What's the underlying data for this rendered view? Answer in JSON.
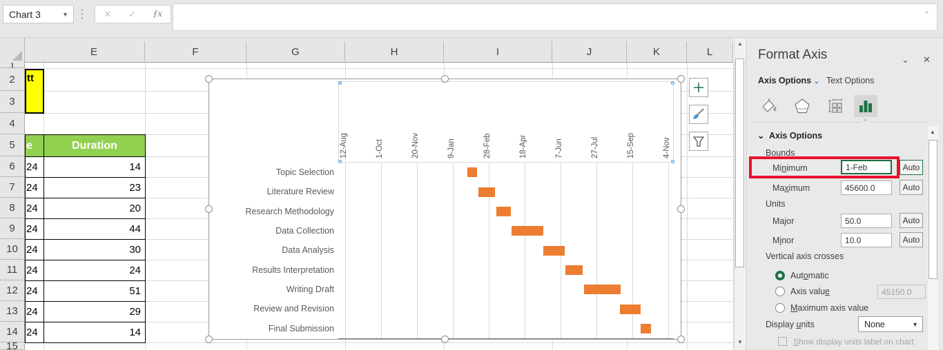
{
  "titlebar": {
    "name_box": "Chart 3",
    "cancel_icon": "✕",
    "enter_icon": "✓",
    "fx_icon": "ƒx",
    "collapse_icon": "⌃"
  },
  "sheet": {
    "columns": [
      "E",
      "F",
      "G",
      "H",
      "I",
      "J",
      "K",
      "L"
    ],
    "rows": [
      "1",
      "2",
      "3",
      "4",
      "5",
      "6",
      "7",
      "8",
      "9",
      "10",
      "11",
      "12",
      "13",
      "14",
      "15"
    ],
    "cells": {
      "title_fragment": "tt",
      "date_header_fragment": "e",
      "duration_header": "Duration",
      "d_column_values": [
        "24",
        "24",
        "24",
        "24",
        "24",
        "24",
        "24",
        "24",
        "24"
      ],
      "duration_values": [
        "14",
        "23",
        "20",
        "44",
        "30",
        "24",
        "51",
        "29",
        "14"
      ]
    },
    "colors": {
      "highlight_yellow": "#FFFF00",
      "header_green": "#92D050"
    }
  },
  "chart_data": {
    "type": "bar",
    "subtype": "horizontal-gantt",
    "categories": [
      "Topic Selection",
      "Literature Review",
      "Research Methodology",
      "Data Collection",
      "Data Analysis",
      "Results Interpretation",
      "Writing Draft",
      "Review and Revision",
      "Final Submission"
    ],
    "x_tick_labels": [
      "12-Aug",
      "1-Oct",
      "20-Nov",
      "9-Jan",
      "28-Feb",
      "18-Apr",
      "7-Jun",
      "27-Jul",
      "15-Sep",
      "4-Nov"
    ],
    "series": [
      {
        "name": "Duration",
        "start_offset_days": [
          170,
          186,
          211,
          232,
          276,
          307,
          333,
          383,
          412
        ],
        "duration_days": [
          14,
          23,
          20,
          44,
          30,
          24,
          51,
          29,
          14
        ]
      }
    ],
    "major_unit_days": 50,
    "bar_color": "#ED7D31",
    "gridlines": true,
    "legend": "none",
    "title": ""
  },
  "chart_ui": {
    "elements_button": "+",
    "buttons": [
      "chart-elements",
      "chart-styles",
      "chart-filters"
    ]
  },
  "panel": {
    "title": "Format Axis",
    "collapse_icon": "⌄",
    "close_icon": "✕",
    "tab_axis": "Axis Options",
    "tab_axis_chevron": "⌄",
    "tab_text": "Text Options",
    "section_header": "Axis Options",
    "bounds_label": "Bounds",
    "minimum_label": {
      "text": "Minimum",
      "u": 2
    },
    "minimum_value": "1-Feb",
    "minimum_auto": "Auto",
    "maximum_label": {
      "text": "Maximum",
      "u": 2
    },
    "maximum_value": "45600.0",
    "maximum_auto": "Auto",
    "units_label": "Units",
    "major_label": {
      "text": "Major",
      "u": 2
    },
    "major_value": "50.0",
    "major_auto": "Auto",
    "minor_label": {
      "text": "Minor",
      "u": 1
    },
    "minor_value": "10.0",
    "minor_auto": "Auto",
    "crosses_label": "Vertical axis crosses",
    "automatic_label": {
      "text": "Automatic",
      "u": 3
    },
    "axis_value_label": {
      "text": "Axis value",
      "u": 9
    },
    "axis_value_value": "45150.0",
    "max_axis_value_label": {
      "text": "Maximum axis value",
      "u": 0
    },
    "display_units_label": {
      "text": "Display units",
      "u": 8
    },
    "display_units_value": "None",
    "show_units_label": {
      "text": "Show display units label on chart",
      "u": 0
    },
    "accent_green": "#217346",
    "highlight_red": "#E8112D"
  }
}
